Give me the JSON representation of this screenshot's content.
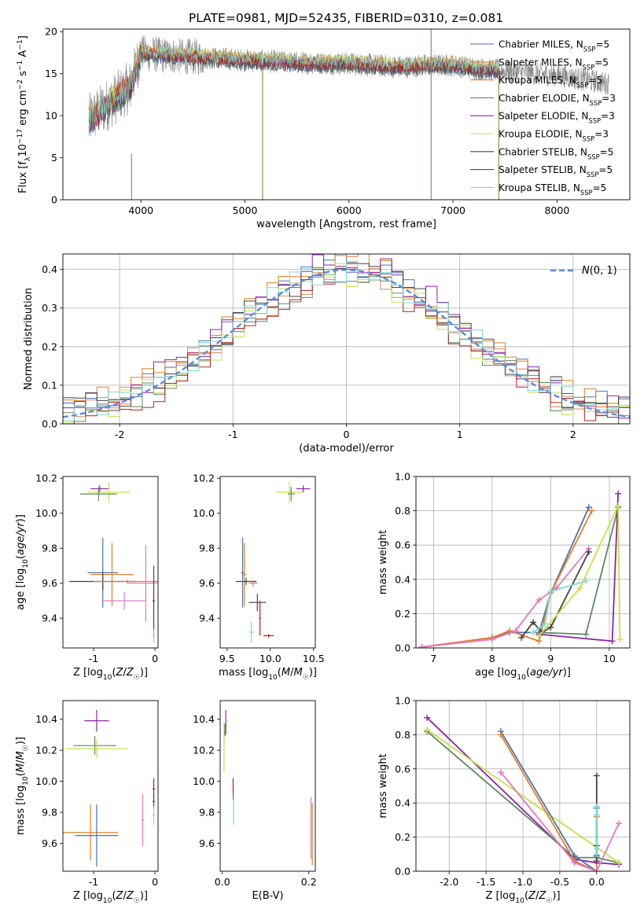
{
  "figure": {
    "title": "PLATE=0981, MJD=52435, FIBERID=0310, z=0.081"
  },
  "colors": {
    "Chabrier MILES": "#4C72B0",
    "Salpeter MILES": "#DD8452",
    "Kroupa MILES": "#E67E22",
    "Chabrier ELODIE": "#5B8A5E",
    "Salpeter ELODIE": "#8E24AA",
    "Kroupa ELODIE": "#C8E04A",
    "Chabrier STELIB": "#444444",
    "Salpeter STELIB": "#B22222",
    "Kroupa STELIB": "#7FD8D8",
    "pink": "#E377C2",
    "normal": "#5B8BE0"
  },
  "chart_data": [
    {
      "id": "spectrum",
      "type": "line",
      "title": "PLATE=0981, MJD=52435, FIBERID=0310, z=0.081",
      "xlabel": "wavelength [Angstrom, rest frame]",
      "ylabel": "Flux [f_λ10^-17 erg cm^-2 s^-1 A^-1]",
      "xlim": [
        3250,
        8700
      ],
      "ylim": [
        0,
        20.3
      ],
      "xticks": [
        4000,
        5000,
        6000,
        7000,
        8000
      ],
      "yticks": [
        0,
        5,
        10,
        15,
        20
      ],
      "legend_position": "top-right",
      "legend": [
        {
          "name": "Chabrier MILES",
          "sub": "SSP",
          "n": "5",
          "color": "#4C72B0"
        },
        {
          "name": "Salpeter MILES",
          "sub": "SSP",
          "n": "5",
          "color": "#DD8452"
        },
        {
          "name": "Kroupa MILES",
          "sub": "SSP",
          "n": "5",
          "color": "#E67E22"
        },
        {
          "name": "Chabrier ELODIE",
          "sub": "SSP",
          "n": "3",
          "color": "#5B8A5E"
        },
        {
          "name": "Salpeter ELODIE",
          "sub": "SSP",
          "n": "3",
          "color": "#8E24AA"
        },
        {
          "name": "Kroupa ELODIE",
          "sub": "SSP",
          "n": "3",
          "color": "#C8E04A"
        },
        {
          "name": "Chabrier STELIB",
          "sub": "SSP",
          "n": "5",
          "color": "#444444"
        },
        {
          "name": "Salpeter STELIB",
          "sub": "SSP",
          "n": "5",
          "color": "#B22222"
        },
        {
          "name": "Kroupa STELIB",
          "sub": "SSP",
          "n": "5",
          "color": "#7FD8D8"
        }
      ],
      "continuum": {
        "x": [
          3500,
          3700,
          3900,
          4000,
          4200,
          4500,
          5000,
          5500,
          6000,
          6500,
          6800,
          7000,
          7300,
          7600,
          8000,
          8300,
          8500
        ],
        "y": [
          9.5,
          11.5,
          13.5,
          17.5,
          17.2,
          17.0,
          16.6,
          16.3,
          16.2,
          15.8,
          16.0,
          16.0,
          15.5,
          15.2,
          14.8,
          14.2,
          13.8
        ]
      },
      "data_x_range": [
        3500,
        8500
      ],
      "model_x_range": [
        3500,
        7450
      ],
      "spikes": [
        {
          "x": 3910,
          "ymin": 0,
          "ymax": 5.5
        },
        {
          "x": 5170,
          "ymin": 0,
          "ymax": 15.8
        },
        {
          "x": 6790,
          "ymin": 0,
          "ymax": 20.3
        },
        {
          "x": 7440,
          "ymin": 0,
          "ymax": 14.8
        }
      ]
    },
    {
      "id": "residuals",
      "type": "area",
      "xlabel": "(data-model)/error",
      "ylabel": "Normed distribution",
      "xlim": [
        -2.5,
        2.5
      ],
      "ylim": [
        0,
        0.44
      ],
      "xticks": [
        -2,
        -1,
        0,
        1,
        2
      ],
      "yticks": [
        0.0,
        0.1,
        0.2,
        0.3,
        0.4
      ],
      "grid": true,
      "legend_position": "top-right",
      "legend_label": "N(0,1)",
      "bin_width": 0.1,
      "bins_start": -2.5,
      "series": [
        {
          "color": "#4C72B0",
          "offset": 0.01
        },
        {
          "color": "#DD8452",
          "offset": -0.005
        },
        {
          "color": "#E67E22",
          "offset": 0.015
        },
        {
          "color": "#5B8A5E",
          "offset": -0.015
        },
        {
          "color": "#8E24AA",
          "offset": 0.02
        },
        {
          "color": "#C8E04A",
          "offset": -0.01
        },
        {
          "color": "#444444",
          "offset": 0.005
        },
        {
          "color": "#B22222",
          "offset": -0.02
        },
        {
          "color": "#7FD8D8",
          "offset": 0.0
        }
      ]
    },
    {
      "id": "age-vs-Z",
      "type": "scatter",
      "xlabel": "Z [log10(Z/Z☉)]",
      "ylabel": "age [log10(age/yr)]",
      "xlim": [
        -1.5,
        0.05
      ],
      "ylim": [
        9.23,
        10.21
      ],
      "xticks": [
        -1,
        0
      ],
      "yticks": [
        9.4,
        9.6,
        9.8,
        10.0,
        10.2
      ],
      "points": [
        {
          "x": -0.9,
          "y": 10.14,
          "xerr": 0.15,
          "yerr": 0.02,
          "color": "#8E24AA"
        },
        {
          "x": -0.75,
          "y": 10.12,
          "xerr": 0.35,
          "yerr": 0.06,
          "color": "#C8E04A"
        },
        {
          "x": -0.92,
          "y": 10.11,
          "xerr": 0.3,
          "yerr": 0.04,
          "color": "#5B8A5E"
        },
        {
          "x": -0.85,
          "y": 9.66,
          "xerr": 0.25,
          "yerr": 0.2,
          "color": "#4C72B0"
        },
        {
          "x": -0.7,
          "y": 9.65,
          "xerr": 0.35,
          "yerr": 0.18,
          "color": "#E67E22"
        },
        {
          "x": -0.85,
          "y": 9.61,
          "xerr": 0.55,
          "yerr": 0.05,
          "color": "#444444"
        },
        {
          "x": -0.15,
          "y": 9.6,
          "xerr": 0.3,
          "yerr": 0.22,
          "color": "#E377C2"
        },
        {
          "x": -0.45,
          "y": 9.61,
          "xerr": 0.55,
          "yerr": 0.01,
          "color": "#E67E22"
        },
        {
          "x": -0.5,
          "y": 9.5,
          "xerr": 0.35,
          "yerr": 0.05,
          "color": "#E377C2"
        },
        {
          "x": -0.02,
          "y": 9.5,
          "xerr": 0.02,
          "yerr": 0.2,
          "color": "#444444"
        },
        {
          "x": -0.02,
          "y": 9.3,
          "xerr": 0.02,
          "yerr": 0.04,
          "color": "#7FD8D8"
        }
      ]
    },
    {
      "id": "age-vs-mass",
      "type": "scatter",
      "xlabel": "mass [log10(M/M☉)]",
      "xlim": [
        9.42,
        10.52
      ],
      "ylim": [
        9.23,
        10.21
      ],
      "xticks": [
        9.5,
        10.0,
        10.5
      ],
      "yticks": [
        9.4,
        9.6,
        9.8,
        10.0,
        10.2
      ],
      "points": [
        {
          "x": 10.38,
          "y": 10.14,
          "xerr": 0.08,
          "yerr": 0.02,
          "color": "#8E24AA"
        },
        {
          "x": 10.22,
          "y": 10.12,
          "xerr": 0.15,
          "yerr": 0.06,
          "color": "#C8E04A"
        },
        {
          "x": 10.24,
          "y": 10.11,
          "xerr": 0.04,
          "yerr": 0.04,
          "color": "#5B8A5E"
        },
        {
          "x": 9.68,
          "y": 9.66,
          "xerr": 0.02,
          "yerr": 0.2,
          "color": "#4C72B0"
        },
        {
          "x": 9.7,
          "y": 9.65,
          "xerr": 0.02,
          "yerr": 0.18,
          "color": "#E67E22"
        },
        {
          "x": 9.72,
          "y": 9.61,
          "xerr": 0.12,
          "yerr": 0.02,
          "color": "#444444"
        },
        {
          "x": 9.8,
          "y": 9.6,
          "xerr": 0.05,
          "yerr": 0.02,
          "color": "#DD8452"
        },
        {
          "x": 9.85,
          "y": 9.49,
          "xerr": 0.1,
          "yerr": 0.05,
          "color": "#444444"
        },
        {
          "x": 9.88,
          "y": 9.4,
          "xerr": 0.01,
          "yerr": 0.1,
          "color": "#B22222"
        },
        {
          "x": 9.98,
          "y": 9.3,
          "xerr": 0.06,
          "yerr": 0.01,
          "color": "#B22222"
        },
        {
          "x": 9.78,
          "y": 9.32,
          "xerr": 0.03,
          "yerr": 0.06,
          "color": "#7FD8D8"
        }
      ]
    },
    {
      "id": "massweight-vs-age",
      "type": "line",
      "xlabel": "age [log10(age/yr)]",
      "ylabel": "mass weight",
      "xlim": [
        6.7,
        10.35
      ],
      "ylim": [
        0,
        1
      ],
      "xticks": [
        7,
        8,
        9,
        10
      ],
      "yticks": [
        0.0,
        0.2,
        0.4,
        0.6,
        0.8,
        1.0
      ],
      "grid": true,
      "series": [
        {
          "color": "#4C72B0",
          "points": [
            [
              6.8,
              0.005
            ],
            [
              8.0,
              0.06
            ],
            [
              8.3,
              0.09
            ],
            [
              8.8,
              0.09
            ],
            [
              9.0,
              0.32
            ],
            [
              9.65,
              0.82
            ]
          ]
        },
        {
          "color": "#E67E22",
          "points": [
            [
              6.8,
              0.005
            ],
            [
              8.0,
              0.06
            ],
            [
              8.3,
              0.1
            ],
            [
              8.8,
              0.04
            ],
            [
              9.0,
              0.32
            ],
            [
              9.7,
              0.8
            ]
          ]
        },
        {
          "color": "#E377C2",
          "points": [
            [
              6.8,
              0.005
            ],
            [
              8.0,
              0.05
            ],
            [
              8.4,
              0.1
            ],
            [
              8.8,
              0.28
            ],
            [
              9.1,
              0.35
            ],
            [
              9.65,
              0.58
            ]
          ]
        },
        {
          "color": "#444444",
          "points": [
            [
              8.5,
              0.06
            ],
            [
              8.7,
              0.15
            ],
            [
              8.85,
              0.09
            ],
            [
              9.0,
              0.12
            ],
            [
              9.65,
              0.56
            ]
          ]
        },
        {
          "color": "#7FD8D8",
          "points": [
            [
              8.7,
              0.09
            ],
            [
              8.9,
              0.14
            ],
            [
              9.0,
              0.33
            ],
            [
              9.6,
              0.39
            ]
          ]
        },
        {
          "color": "#5B8A5E",
          "points": [
            [
              8.8,
              0.09
            ],
            [
              9.6,
              0.08
            ],
            [
              10.15,
              0.82
            ]
          ]
        },
        {
          "color": "#8E24AA",
          "points": [
            [
              8.8,
              0.08
            ],
            [
              10.05,
              0.04
            ],
            [
              10.15,
              0.9
            ]
          ]
        },
        {
          "color": "#C8E04A",
          "points": [
            [
              8.8,
              0.07
            ],
            [
              9.5,
              0.35
            ],
            [
              10.15,
              0.83
            ],
            [
              10.18,
              0.05
            ]
          ]
        }
      ]
    },
    {
      "id": "mass-vs-Z",
      "type": "scatter",
      "xlabel": "Z [log10(Z/Z☉)]",
      "ylabel": "mass [log10(M/M☉)]",
      "xlim": [
        -1.5,
        0.05
      ],
      "ylim": [
        9.42,
        10.52
      ],
      "xticks": [
        -1,
        0
      ],
      "yticks": [
        9.6,
        9.8,
        10.0,
        10.2,
        10.4
      ],
      "points": [
        {
          "x": -0.95,
          "y": 10.39,
          "xerr": 0.2,
          "yerr": 0.07,
          "color": "#8E24AA"
        },
        {
          "x": -0.98,
          "y": 10.23,
          "xerr": 0.35,
          "yerr": 0.06,
          "color": "#5B8A5E"
        },
        {
          "x": -0.95,
          "y": 10.21,
          "xerr": 0.5,
          "yerr": 0.06,
          "color": "#C8E04A"
        },
        {
          "x": -1.05,
          "y": 9.67,
          "xerr": 0.45,
          "yerr": 0.18,
          "color": "#E67E22"
        },
        {
          "x": -0.95,
          "y": 9.65,
          "xerr": 0.35,
          "yerr": 0.2,
          "color": "#4C72B0"
        },
        {
          "x": -0.2,
          "y": 9.75,
          "xerr": 0.02,
          "yerr": 0.17,
          "color": "#E377C2"
        },
        {
          "x": -0.02,
          "y": 9.95,
          "xerr": 0.02,
          "yerr": 0.07,
          "color": "#B22222"
        },
        {
          "x": -0.02,
          "y": 9.87,
          "xerr": 0.02,
          "yerr": 0.05,
          "color": "#444444"
        },
        {
          "x": -0.02,
          "y": 9.78,
          "xerr": 0.02,
          "yerr": 0.06,
          "color": "#7FD8D8"
        }
      ]
    },
    {
      "id": "mass-vs-EBV",
      "type": "scatter",
      "xlabel": "E(B-V)",
      "xlim": [
        -0.005,
        0.215
      ],
      "ylim": [
        9.42,
        10.52
      ],
      "xticks": [
        0.0,
        0.2
      ],
      "yticks": [
        9.6,
        9.8,
        10.0,
        10.2,
        10.4
      ],
      "points": [
        {
          "x": 0.008,
          "y": 10.38,
          "xerr": 0.0,
          "yerr": 0.08,
          "color": "#8E24AA"
        },
        {
          "x": 0.004,
          "y": 10.22,
          "xerr": 0.0,
          "yerr": 0.16,
          "color": "#C8E04A"
        },
        {
          "x": 0.006,
          "y": 10.33,
          "xerr": 0.0,
          "yerr": 0.04,
          "color": "#5B8A5E"
        },
        {
          "x": 0.025,
          "y": 9.95,
          "xerr": 0.0,
          "yerr": 0.07,
          "color": "#B22222"
        },
        {
          "x": 0.026,
          "y": 9.82,
          "xerr": 0.0,
          "yerr": 0.1,
          "color": "#7FD8D8"
        },
        {
          "x": 0.205,
          "y": 9.7,
          "xerr": 0.0,
          "yerr": 0.2,
          "color": "#E377C2"
        },
        {
          "x": 0.208,
          "y": 9.66,
          "xerr": 0.0,
          "yerr": 0.2,
          "color": "#E67E22"
        }
      ]
    },
    {
      "id": "massweight-vs-Z",
      "type": "line",
      "xlabel": "Z [log10(Z/Z☉)]",
      "ylabel": "mass weight",
      "xlim": [
        -2.45,
        0.45
      ],
      "ylim": [
        0,
        1
      ],
      "xticks": [
        -2.0,
        -1.5,
        -1.0,
        -0.5,
        0.0
      ],
      "yticks": [
        0.0,
        0.2,
        0.4,
        0.6,
        0.8,
        1.0
      ],
      "grid": true,
      "series": [
        {
          "color": "#8E24AA",
          "points": [
            [
              -2.3,
              0.9
            ],
            [
              -0.3,
              0.07
            ],
            [
              0.0,
              0.05
            ],
            [
              0.3,
              0.04
            ]
          ]
        },
        {
          "color": "#5B8A5E",
          "points": [
            [
              -2.3,
              0.82
            ],
            [
              -0.3,
              0.08
            ],
            [
              0.0,
              0.08
            ],
            [
              0.3,
              0.05
            ]
          ]
        },
        {
          "color": "#C8E04A",
          "points": [
            [
              -2.3,
              0.83
            ],
            [
              0.3,
              0.05
            ]
          ]
        },
        {
          "color": "#4C72B0",
          "points": [
            [
              -1.3,
              0.82
            ],
            [
              -0.3,
              0.09
            ],
            [
              0.0,
              0.0
            ],
            [
              0.0,
              0.37
            ]
          ]
        },
        {
          "color": "#E67E22",
          "points": [
            [
              -1.3,
              0.8
            ],
            [
              -0.3,
              0.06
            ],
            [
              0.0,
              0.0
            ],
            [
              0.0,
              0.32
            ]
          ]
        },
        {
          "color": "#E377C2",
          "points": [
            [
              -1.3,
              0.58
            ],
            [
              -0.3,
              0.05
            ],
            [
              0.0,
              0.0
            ],
            [
              0.3,
              0.28
            ]
          ]
        },
        {
          "color": "#444444",
          "points": [
            [
              0.0,
              0.56
            ],
            [
              0.0,
              0.15
            ],
            [
              0.0,
              0.09
            ],
            [
              0.0,
              0.06
            ]
          ]
        },
        {
          "color": "#7FD8D8",
          "points": [
            [
              0.0,
              0.38
            ],
            [
              0.0,
              0.33
            ],
            [
              0.0,
              0.13
            ],
            [
              0.0,
              0.1
            ]
          ]
        }
      ]
    }
  ]
}
